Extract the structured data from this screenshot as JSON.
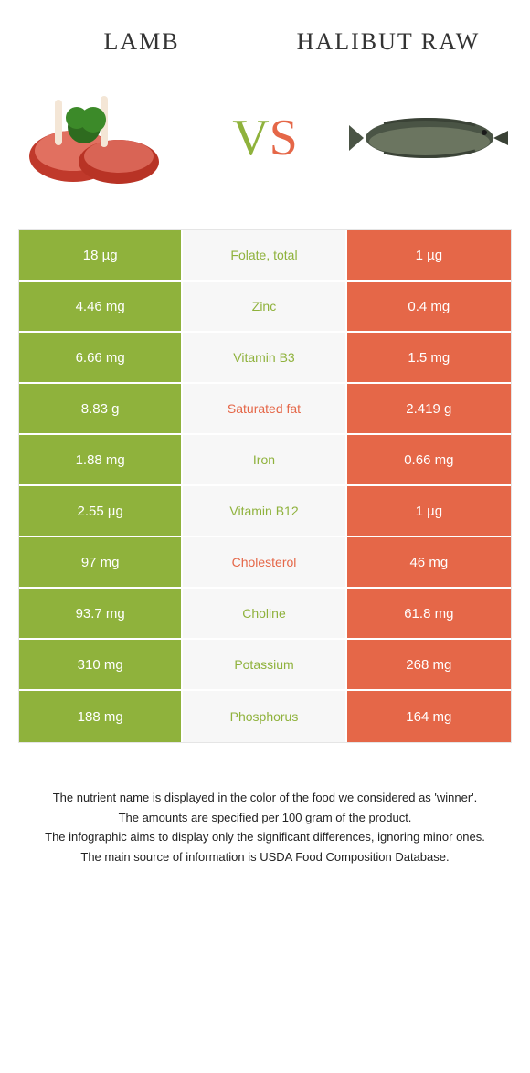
{
  "colors": {
    "green": "#8fb23c",
    "orange": "#e56748",
    "mid_bg": "#f7f7f7",
    "border": "#e5e5e5"
  },
  "header": {
    "left_title": "Lamb",
    "right_title": "Halibut raw",
    "vs_v": "V",
    "vs_s": "S"
  },
  "rows": [
    {
      "left": "18 µg",
      "mid": "Folate, total",
      "right": "1 µg",
      "winner": "left"
    },
    {
      "left": "4.46 mg",
      "mid": "Zinc",
      "right": "0.4 mg",
      "winner": "left"
    },
    {
      "left": "6.66 mg",
      "mid": "Vitamin B3",
      "right": "1.5 mg",
      "winner": "left"
    },
    {
      "left": "8.83 g",
      "mid": "Saturated fat",
      "right": "2.419 g",
      "winner": "right"
    },
    {
      "left": "1.88 mg",
      "mid": "Iron",
      "right": "0.66 mg",
      "winner": "left"
    },
    {
      "left": "2.55 µg",
      "mid": "Vitamin B12",
      "right": "1 µg",
      "winner": "left"
    },
    {
      "left": "97 mg",
      "mid": "Cholesterol",
      "right": "46 mg",
      "winner": "right"
    },
    {
      "left": "93.7 mg",
      "mid": "Choline",
      "right": "61.8 mg",
      "winner": "left"
    },
    {
      "left": "310 mg",
      "mid": "Potassium",
      "right": "268 mg",
      "winner": "left"
    },
    {
      "left": "188 mg",
      "mid": "Phosphorus",
      "right": "164 mg",
      "winner": "left"
    }
  ],
  "footer": {
    "line1": "The nutrient name is displayed in the color of the food we considered as 'winner'.",
    "line2": "The amounts are specified per 100 gram of the product.",
    "line3": "The infographic aims to display only the significant differences, ignoring minor ones.",
    "line4": "The main source of information is USDA Food Composition Database."
  }
}
